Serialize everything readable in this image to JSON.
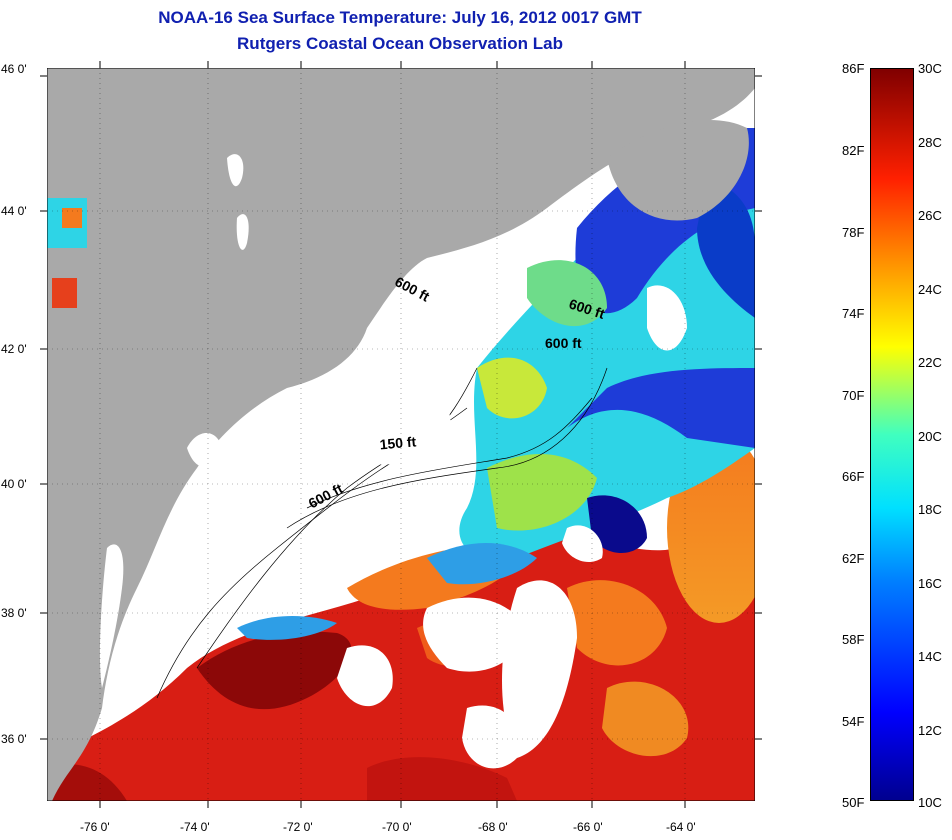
{
  "header": {
    "title_line1": "NOAA-16 Sea Surface Temperature:  July 16, 2012 0017 GMT",
    "title_line2": "Rutgers Coastal Ocean Observation Lab"
  },
  "map": {
    "lat_labels": [
      "46 0'",
      "44 0'",
      "42 0'",
      "40 0'",
      "38 0'",
      "36 0'"
    ],
    "lon_labels": [
      "-76 0'",
      "-74 0'",
      "-72 0'",
      "-70 0'",
      "-68 0'",
      "-66 0'",
      "-64 0'"
    ],
    "contour_labels": [
      "600 ft",
      "600 ft",
      "600 ft",
      "150 ft",
      "600 ft"
    ],
    "colors": {
      "land": "#a9a9a9",
      "cloud": "#ffffff",
      "warm": "#d81e14",
      "hot": "#8c0808",
      "orange": "#f47a1e",
      "yellow": "#e8e23a",
      "cyan": "#2ed4e6",
      "blue": "#1e3cd8",
      "deep_blue": "#0a0a8c"
    }
  },
  "colorbar": {
    "f_labels": [
      "86F",
      "82F",
      "78F",
      "74F",
      "70F",
      "66F",
      "62F",
      "58F",
      "54F",
      "50F"
    ],
    "c_labels": [
      "30C",
      "28C",
      "26C",
      "24C",
      "22C",
      "20C",
      "18C",
      "16C",
      "14C",
      "12C",
      "10C"
    ]
  }
}
